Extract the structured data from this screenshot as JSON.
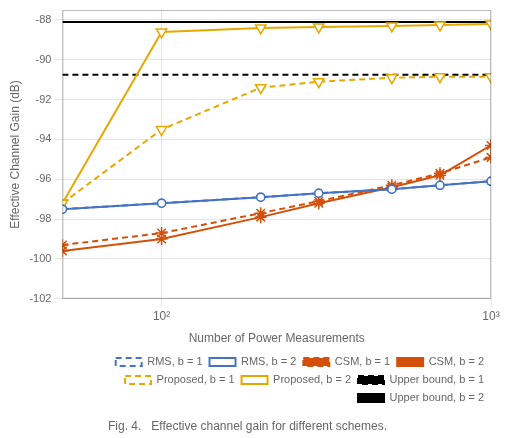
{
  "chart_data": {
    "type": "line",
    "caption": "Fig. 4.   Effective channel gain for different schemes.",
    "xlabel": "Number of Power Measurements",
    "ylabel": "Effective Channel Gain (dB)",
    "log": "x",
    "grid": true,
    "legend": "lower right",
    "x": [
      50,
      100,
      200,
      300,
      500,
      700,
      1000
    ],
    "xlim": [
      50,
      1000
    ],
    "xticks": [
      {
        "value": 100,
        "label": "10²"
      },
      {
        "value": 1000,
        "label": "10³"
      }
    ],
    "ylim": [
      -102,
      -87.5
    ],
    "yticks": [
      -102,
      -100,
      -98,
      -96,
      -94,
      -92,
      -90,
      -88
    ],
    "series": [
      {
        "name": "RMS, b = 1",
        "color": "#4472c4",
        "line_style": "dashed",
        "marker": "circle",
        "values": [
          -97.5,
          -97.2,
          -96.9,
          -96.7,
          -96.5,
          -96.3,
          -96.1
        ]
      },
      {
        "name": "RMS, b = 2",
        "color": "#4472c4",
        "line_style": "solid",
        "marker": "circle",
        "values": [
          -97.5,
          -97.2,
          -96.9,
          -96.7,
          -96.5,
          -96.3,
          -96.1
        ]
      },
      {
        "name": "CSM, b = 1",
        "color": "#d4500a",
        "line_style": "dashed",
        "marker": "star",
        "values": [
          -99.3,
          -98.7,
          -97.7,
          -97.1,
          -96.3,
          -95.7,
          -94.9
        ]
      },
      {
        "name": "CSM, b = 2",
        "color": "#d4500a",
        "line_style": "solid",
        "marker": "star",
        "values": [
          -99.6,
          -99.0,
          -97.9,
          -97.2,
          -96.4,
          -95.8,
          -94.3
        ]
      },
      {
        "name": "Proposed, b = 1",
        "color": "#e6a800",
        "line_style": "dashed",
        "marker": "triangle_down",
        "values": [
          -97.2,
          -93.5,
          -91.4,
          -91.1,
          -90.9,
          -90.85,
          -90.85
        ]
      },
      {
        "name": "Proposed, b = 2",
        "color": "#e6a800",
        "line_style": "solid",
        "marker": "triangle_down",
        "values": [
          -97.2,
          -88.6,
          -88.4,
          -88.35,
          -88.3,
          -88.25,
          -88.2
        ]
      },
      {
        "name": "Upper bound, b = 1",
        "color": "#000000",
        "line_style": "dashed",
        "marker": "none",
        "x": [
          50,
          1000
        ],
        "values": [
          -90.75,
          -90.75
        ]
      },
      {
        "name": "Upper bound, b = 2",
        "color": "#000000",
        "line_style": "solid",
        "marker": "none",
        "x": [
          50,
          1000
        ],
        "values": [
          -88.1,
          -88.1
        ]
      }
    ]
  }
}
